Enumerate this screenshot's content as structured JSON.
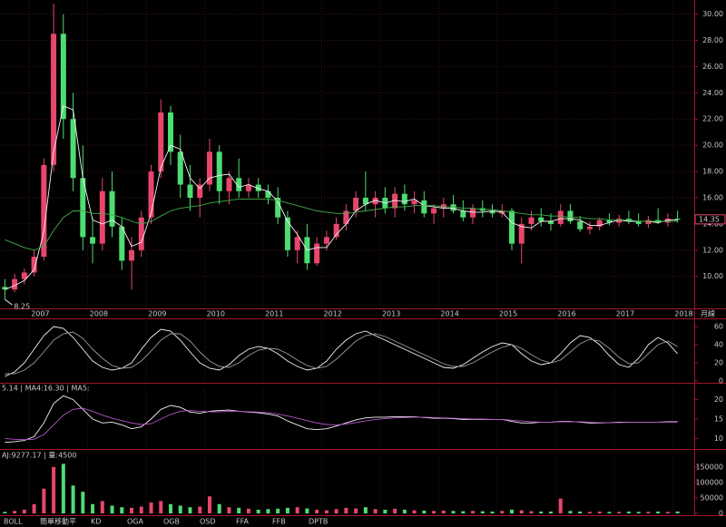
{
  "chart_data": [
    {
      "type": "candlestick",
      "grid": true,
      "up_color": "#e8466c",
      "down_color": "#4fdc72",
      "categories": [
        null,
        null,
        null,
        "2007",
        null,
        null,
        null,
        null,
        null,
        "2008",
        null,
        null,
        null,
        null,
        null,
        "2009",
        null,
        null,
        null,
        null,
        null,
        "2010",
        null,
        null,
        null,
        null,
        null,
        "2011",
        null,
        null,
        null,
        null,
        null,
        "2012",
        null,
        null,
        null,
        null,
        null,
        "2013",
        null,
        null,
        null,
        null,
        null,
        "2014",
        null,
        null,
        null,
        null,
        null,
        "2015",
        null,
        null,
        null,
        null,
        null,
        "2016",
        null,
        null,
        null,
        null,
        null,
        "2017",
        null,
        null,
        null,
        null,
        null,
        "2018"
      ],
      "open": [
        9.2,
        9.0,
        9.8,
        10.3,
        11.5,
        18.5,
        28.5,
        22.0,
        17.5,
        13.0,
        12.5,
        16.5,
        13.8,
        11.2,
        12.0,
        14.5,
        18.0,
        22.5,
        19.5,
        17.0,
        16.0,
        17.0,
        19.5,
        16.5,
        17.5,
        16.5,
        17.0,
        16.5,
        16.0,
        14.5,
        12.0,
        13.0,
        11.0,
        12.5,
        13.0,
        14.0,
        15.0,
        16.0,
        15.5,
        16.0,
        15.2,
        16.3,
        15.5,
        15.8,
        14.8,
        15.2,
        15.5,
        15.0,
        14.5,
        15.2,
        15.0,
        14.8,
        15.0,
        12.5,
        14.0,
        14.5,
        14.2,
        14.0,
        15.0,
        14.2,
        13.6,
        13.8,
        14.3,
        14.1,
        14.4,
        14.2,
        14.0,
        14.3,
        14.1,
        14.4
      ],
      "high": [
        9.8,
        10.2,
        10.6,
        12.0,
        19.0,
        30.8,
        30.0,
        24.0,
        20.0,
        14.5,
        17.5,
        18.0,
        14.5,
        13.0,
        15.0,
        18.5,
        23.5,
        23.0,
        20.8,
        18.5,
        17.5,
        20.5,
        20.0,
        18.0,
        19.0,
        17.5,
        17.5,
        17.0,
        16.8,
        15.0,
        13.5,
        14.0,
        13.0,
        13.5,
        14.5,
        15.5,
        16.5,
        18.0,
        16.5,
        16.8,
        16.8,
        17.0,
        16.5,
        16.5,
        15.5,
        16.0,
        16.2,
        15.8,
        15.5,
        15.8,
        15.5,
        15.5,
        15.2,
        14.5,
        15.0,
        15.2,
        14.8,
        15.5,
        15.5,
        14.6,
        14.2,
        14.5,
        14.8,
        14.7,
        15.0,
        14.8,
        14.6,
        15.2,
        14.8,
        15.0
      ],
      "low": [
        8.25,
        8.8,
        9.4,
        10.0,
        11.2,
        18.0,
        20.5,
        16.5,
        12.0,
        11.0,
        12.0,
        13.0,
        10.5,
        9.0,
        11.5,
        14.0,
        17.5,
        18.5,
        16.0,
        15.0,
        14.5,
        16.5,
        15.5,
        15.5,
        16.0,
        16.0,
        16.0,
        15.5,
        14.0,
        11.5,
        11.0,
        10.5,
        10.8,
        12.0,
        12.8,
        13.5,
        14.5,
        15.0,
        14.5,
        14.8,
        14.5,
        15.0,
        14.8,
        14.5,
        14.0,
        14.5,
        14.8,
        14.2,
        14.0,
        14.5,
        14.5,
        14.5,
        12.0,
        11.0,
        13.5,
        13.8,
        13.5,
        13.8,
        14.0,
        13.4,
        13.2,
        13.5,
        13.9,
        13.8,
        14.0,
        13.8,
        13.7,
        14.0,
        13.8,
        14.1
      ],
      "close": [
        9.0,
        9.8,
        10.3,
        11.5,
        18.5,
        28.5,
        22.0,
        17.5,
        13.0,
        12.5,
        16.5,
        13.8,
        11.2,
        12.0,
        14.5,
        18.0,
        22.5,
        19.5,
        17.0,
        16.0,
        17.0,
        19.5,
        16.5,
        17.5,
        16.5,
        17.0,
        16.5,
        16.0,
        14.5,
        12.0,
        13.0,
        11.0,
        12.5,
        13.0,
        14.0,
        15.0,
        16.0,
        15.5,
        16.0,
        15.2,
        16.3,
        15.5,
        15.8,
        14.8,
        15.2,
        15.5,
        15.0,
        14.5,
        15.2,
        15.0,
        14.8,
        15.0,
        12.5,
        14.0,
        14.5,
        14.2,
        14.0,
        15.0,
        14.2,
        13.6,
        13.8,
        14.3,
        14.1,
        14.4,
        14.2,
        14.0,
        14.3,
        14.1,
        14.4,
        14.35
      ],
      "series": [
        {
          "color": "#f2f2f2",
          "values": [
            9.0,
            9.3,
            9.7,
            10.5,
            13.4,
            19.5,
            23.0,
            22.7,
            17.5,
            14.3,
            14.0,
            14.3,
            13.8,
            12.3,
            12.6,
            14.8,
            18.3,
            20.0,
            19.7,
            17.5,
            16.7,
            17.5,
            17.7,
            17.8,
            16.8,
            17.0,
            16.7,
            16.5,
            15.7,
            14.2,
            13.2,
            12.0,
            12.2,
            12.2,
            13.2,
            14.0,
            15.0,
            15.5,
            15.8,
            15.6,
            15.8,
            15.7,
            15.9,
            15.4,
            15.3,
            15.2,
            15.2,
            15.0,
            14.9,
            14.9,
            15.0,
            14.9,
            14.1,
            13.8,
            13.7,
            14.2,
            14.2,
            14.4,
            14.4,
            14.3,
            13.9,
            13.9,
            14.1,
            14.3,
            14.2,
            14.2,
            14.2,
            14.1,
            14.3,
            14.3
          ]
        },
        {
          "color": "#3fae4a",
          "values": [
            12.8,
            12.5,
            12.2,
            12.0,
            12.3,
            13.5,
            14.5,
            15.0,
            15.0,
            14.8,
            14.8,
            14.7,
            14.5,
            14.2,
            14.0,
            14.2,
            14.6,
            15.0,
            15.2,
            15.3,
            15.4,
            15.6,
            15.7,
            15.8,
            15.9,
            15.9,
            15.9,
            15.9,
            15.8,
            15.6,
            15.4,
            15.2,
            15.0,
            14.9,
            14.8,
            14.8,
            14.9,
            15.0,
            15.1,
            15.2,
            15.3,
            15.3,
            15.4,
            15.4,
            15.4,
            15.3,
            15.3,
            15.2,
            15.2,
            15.1,
            15.1,
            15.0,
            14.9,
            14.8,
            14.7,
            14.7,
            14.6,
            14.6,
            14.5,
            14.5,
            14.4,
            14.4,
            14.3,
            14.3,
            14.3,
            14.2,
            14.2,
            14.2,
            14.2,
            14.2
          ]
        }
      ],
      "ylim": [
        7.7,
        30.8
      ],
      "yticks": [
        {
          "value": 10,
          "label": "10.00"
        },
        {
          "value": 12,
          "label": "12.00"
        },
        {
          "value": 14,
          "label": "14.00"
        },
        {
          "value": 16,
          "label": "16.00"
        },
        {
          "value": 18,
          "label": "18.00"
        },
        {
          "value": 20,
          "label": "20.00"
        },
        {
          "value": 22,
          "label": "22.00"
        },
        {
          "value": 24,
          "label": "24.00"
        },
        {
          "value": 26,
          "label": "26.00"
        },
        {
          "value": 28,
          "label": "28.00"
        },
        {
          "value": 30,
          "label": "30.00"
        }
      ],
      "low_label": {
        "value": 8.25,
        "label": "8.25"
      },
      "last_price": {
        "value": 14.35,
        "label": "14.35"
      }
    },
    {
      "type": "line",
      "label": "月線",
      "ylim": [
        0,
        65
      ],
      "yticks": [
        0,
        20,
        40,
        60
      ],
      "series": [
        {
          "color": "#f2f2f2",
          "values": [
            5,
            10,
            20,
            35,
            50,
            60,
            58,
            48,
            35,
            22,
            15,
            12,
            14,
            20,
            35,
            48,
            57,
            55,
            45,
            32,
            20,
            14,
            12,
            18,
            28,
            35,
            38,
            36,
            30,
            22,
            16,
            12,
            14,
            22,
            35,
            45,
            52,
            55,
            50,
            45,
            40,
            35,
            30,
            25,
            20,
            15,
            14,
            18,
            25,
            32,
            38,
            42,
            40,
            30,
            22,
            18,
            20,
            30,
            42,
            50,
            48,
            40,
            28,
            18,
            15,
            25,
            40,
            48,
            42,
            30
          ]
        },
        {
          "color": "#9a9a9a",
          "values": [
            8,
            8,
            12,
            20,
            32,
            45,
            52,
            54,
            47,
            35,
            25,
            17,
            14,
            15,
            22,
            33,
            45,
            52,
            52,
            44,
            32,
            22,
            16,
            15,
            20,
            28,
            34,
            36,
            35,
            30,
            23,
            17,
            14,
            16,
            24,
            34,
            44,
            50,
            52,
            49,
            44,
            39,
            34,
            29,
            24,
            19,
            16,
            16,
            20,
            26,
            32,
            37,
            40,
            36,
            29,
            23,
            20,
            23,
            32,
            41,
            46,
            44,
            36,
            26,
            19,
            20,
            30,
            40,
            44,
            38
          ]
        }
      ]
    },
    {
      "type": "line",
      "title": "5.14 | MA4:16.30 | MA5:",
      "ylim": [
        8,
        22
      ],
      "yticks": [
        10,
        15,
        20
      ],
      "series": [
        {
          "color": "#f2f2f2",
          "values": [
            9,
            9.2,
            9.5,
            10.5,
            14,
            19,
            21,
            20,
            17.5,
            15,
            14,
            14.2,
            13.5,
            12.5,
            13,
            15,
            17.5,
            18.5,
            18,
            16.8,
            16.5,
            17,
            17.2,
            17.3,
            17,
            16.8,
            16.6,
            16.3,
            15.8,
            14.5,
            13.5,
            12.5,
            12.3,
            12.5,
            13.2,
            14,
            14.8,
            15.3,
            15.5,
            15.5,
            15.6,
            15.6,
            15.6,
            15.4,
            15.2,
            15.2,
            15.1,
            14.9,
            14.9,
            14.9,
            14.9,
            14.9,
            14.4,
            14,
            14,
            14.2,
            14.2,
            14.4,
            14.4,
            14.2,
            14,
            14,
            14.1,
            14.2,
            14.2,
            14.2,
            14.2,
            14.2,
            14.3,
            14.3
          ]
        },
        {
          "color": "#b455c8",
          "values": [
            10,
            9.8,
            9.7,
            9.8,
            11,
            13.5,
            16,
            17.5,
            17.8,
            17,
            16,
            15.2,
            14.6,
            14,
            13.6,
            13.8,
            15,
            16.2,
            17,
            17.2,
            17,
            16.9,
            16.9,
            17,
            17,
            16.9,
            16.8,
            16.6,
            16.3,
            15.8,
            15.2,
            14.6,
            14,
            13.6,
            13.5,
            13.7,
            14.1,
            14.5,
            14.9,
            15.1,
            15.3,
            15.4,
            15.5,
            15.5,
            15.4,
            15.3,
            15.2,
            15.1,
            15,
            15,
            14.9,
            14.9,
            14.7,
            14.5,
            14.3,
            14.2,
            14.2,
            14.3,
            14.3,
            14.3,
            14.2,
            14.1,
            14.1,
            14.1,
            14.2,
            14.2,
            14.2,
            14.2,
            14.2,
            14.2
          ]
        }
      ]
    },
    {
      "type": "bar",
      "title": "AJ:9277.17 | 量:4500",
      "ylim": [
        0,
        170000
      ],
      "yticks": [
        0,
        50000,
        100000,
        150000
      ],
      "values": [
        5000,
        8000,
        12000,
        30000,
        80000,
        150000,
        160000,
        90000,
        70000,
        30000,
        40000,
        25000,
        20000,
        18000,
        22000,
        35000,
        40000,
        30000,
        25000,
        20000,
        22000,
        55000,
        30000,
        20000,
        18000,
        15000,
        12000,
        14000,
        15000,
        18000,
        20000,
        16000,
        12000,
        10000,
        14000,
        18000,
        16000,
        20000,
        14000,
        12000,
        15000,
        12000,
        10000,
        9000,
        8000,
        9000,
        8000,
        7000,
        8000,
        7000,
        6000,
        8000,
        12000,
        10000,
        7000,
        6000,
        6000,
        48000,
        8000,
        6000,
        5000,
        6000,
        5000,
        5000,
        6000,
        5000,
        5000,
        6000,
        5000,
        6000
      ]
    }
  ],
  "tabs": [
    "BOLL",
    "簡單移動平",
    "KD",
    "OGA",
    "OGB",
    "OSD",
    "FFA",
    "FFB",
    "DPTB"
  ]
}
